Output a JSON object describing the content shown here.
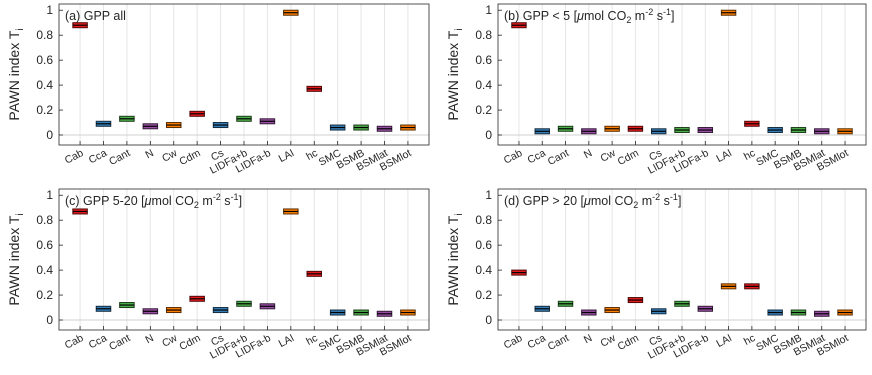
{
  "chart_data": [
    {
      "type": "bar",
      "title_prefix": "(a) GPP all",
      "title_parts": [],
      "ylabel": "PAWN index T",
      "ylabel_sub": "i",
      "categories": [
        "Cab",
        "Cca",
        "Cant",
        "N",
        "Cw",
        "Cdm",
        "Cs",
        "LIDFa+b",
        "LIDFa-b",
        "LAI",
        "hc",
        "SMC",
        "BSMB",
        "BSMlat",
        "BSMlot"
      ],
      "values": [
        0.88,
        0.09,
        0.13,
        0.07,
        0.08,
        0.17,
        0.08,
        0.13,
        0.11,
        0.98,
        0.37,
        0.06,
        0.06,
        0.05,
        0.06
      ],
      "yticks": [
        "0",
        "0.2",
        "0.4",
        "0.6",
        "0.8",
        "1"
      ],
      "ylim": [
        -0.08,
        1.05
      ],
      "grid": "vertical"
    },
    {
      "type": "bar",
      "title_prefix": "(b) GPP < 5 [",
      "title_parts": [
        "μ",
        "mol CO",
        "2",
        " m",
        "-2",
        " s",
        "-1",
        "]"
      ],
      "ylabel": "PAWN index T",
      "ylabel_sub": "i",
      "categories": [
        "Cab",
        "Cca",
        "Cant",
        "N",
        "Cw",
        "Cdm",
        "Cs",
        "LIDFa+b",
        "LIDFa-b",
        "LAI",
        "hc",
        "SMC",
        "BSMB",
        "BSMlat",
        "BSMlot"
      ],
      "values": [
        0.88,
        0.03,
        0.05,
        0.03,
        0.05,
        0.05,
        0.03,
        0.04,
        0.04,
        0.98,
        0.09,
        0.04,
        0.04,
        0.03,
        0.03
      ],
      "yticks": [
        "0",
        "0.2",
        "0.4",
        "0.6",
        "0.8",
        "1"
      ],
      "ylim": [
        -0.08,
        1.05
      ],
      "grid": "vertical"
    },
    {
      "type": "bar",
      "title_prefix": "(c) GPP 5-20  [",
      "title_parts": [
        "μ",
        "mol CO",
        "2",
        " m",
        "-2",
        " s",
        "-1",
        "]"
      ],
      "ylabel": "PAWN index T",
      "ylabel_sub": "i",
      "categories": [
        "Cab",
        "Cca",
        "Cant",
        "N",
        "Cw",
        "Cdm",
        "Cs",
        "LIDFa+b",
        "LIDFa-b",
        "LAI",
        "hc",
        "SMC",
        "BSMB",
        "BSMlat",
        "BSMlot"
      ],
      "values": [
        0.87,
        0.09,
        0.12,
        0.07,
        0.08,
        0.17,
        0.08,
        0.13,
        0.11,
        0.87,
        0.37,
        0.06,
        0.06,
        0.05,
        0.06
      ],
      "yticks": [
        "0",
        "0.2",
        "0.4",
        "0.6",
        "0.8",
        "1"
      ],
      "ylim": [
        -0.08,
        1.05
      ],
      "grid": "vertical"
    },
    {
      "type": "bar",
      "title_prefix": "(d) GPP > 20 [",
      "title_parts": [
        "μ",
        "mol CO",
        "2",
        " m",
        "-2",
        " s",
        "-1",
        "]"
      ],
      "ylabel": "PAWN index T",
      "ylabel_sub": "i",
      "categories": [
        "Cab",
        "Cca",
        "Cant",
        "N",
        "Cw",
        "Cdm",
        "Cs",
        "LIDFa+b",
        "LIDFa-b",
        "LAI",
        "hc",
        "SMC",
        "BSMB",
        "BSMlat",
        "BSMlot"
      ],
      "values": [
        0.38,
        0.09,
        0.13,
        0.06,
        0.08,
        0.16,
        0.07,
        0.13,
        0.09,
        0.27,
        0.27,
        0.06,
        0.06,
        0.05,
        0.06
      ],
      "yticks": [
        "0",
        "0.2",
        "0.4",
        "0.6",
        "0.8",
        "1"
      ],
      "ylim": [
        -0.08,
        1.05
      ],
      "grid": "vertical"
    }
  ],
  "colors": [
    "#e41a1c",
    "#377eb8",
    "#4daf4a",
    "#984ea3",
    "#ff7f00",
    "#e41a1c",
    "#377eb8",
    "#4daf4a",
    "#984ea3",
    "#ff7f00",
    "#e41a1c",
    "#377eb8",
    "#4daf4a",
    "#984ea3",
    "#ff7f00"
  ]
}
